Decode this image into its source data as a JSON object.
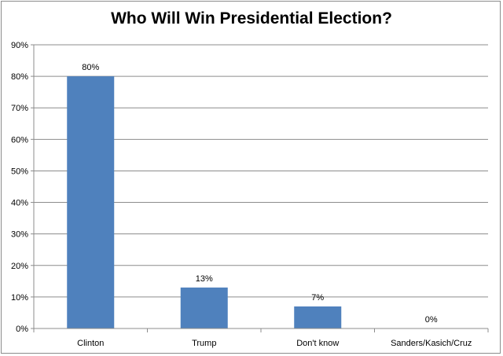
{
  "chart_data": {
    "type": "bar",
    "title": "Who Will Win Presidential Election?",
    "categories": [
      "Clinton",
      "Trump",
      "Don't know",
      "Sanders/Kasich/Cruz"
    ],
    "values": [
      80,
      13,
      7,
      0
    ],
    "data_labels": [
      "80%",
      "13%",
      "7%",
      "0%"
    ],
    "ylim": [
      0,
      90
    ],
    "yticks": [
      0,
      10,
      20,
      30,
      40,
      50,
      60,
      70,
      80,
      90
    ],
    "ytick_labels": [
      "0%",
      "10%",
      "20%",
      "30%",
      "40%",
      "50%",
      "60%",
      "70%",
      "80%",
      "90%"
    ],
    "grid": true,
    "legend": "none",
    "bar_color": "#4f81bd",
    "grid_color": "#8c8c8c"
  }
}
